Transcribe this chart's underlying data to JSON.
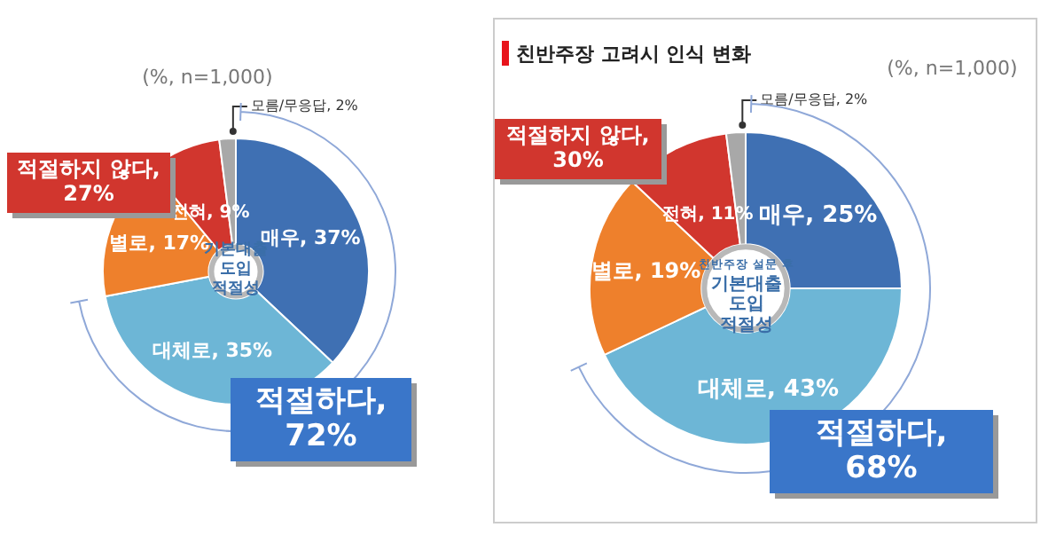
{
  "chart_data": [
    {
      "type": "donut",
      "categories": [
        "매우",
        "대체로",
        "별로",
        "전혀",
        "모름/무응답"
      ],
      "values": [
        37,
        35,
        17,
        9,
        2
      ],
      "colors": [
        "#3f70b3",
        "#6db6d6",
        "#ee802c",
        "#d1362e",
        "#a8a8a8"
      ],
      "value_labels": [
        "37%",
        "35%",
        "17%",
        "9%",
        "2%"
      ],
      "legend": false,
      "annotations": [
        "(%, n=1,000)",
        "기본대출\n도입\n적절성",
        "적절하지 않다, 27%",
        "적절하다, 72%"
      ]
    },
    {
      "type": "donut",
      "title": "친반주장 고려시 인식 변화",
      "categories": [
        "매우",
        "대체로",
        "별로",
        "전혀",
        "모름/무응답"
      ],
      "values": [
        25,
        43,
        19,
        11,
        2
      ],
      "colors": [
        "#3f70b3",
        "#6db6d6",
        "#ee802c",
        "#d1362e",
        "#a8a8a8"
      ],
      "value_labels": [
        "25%",
        "43%",
        "19%",
        "11%",
        "2%"
      ],
      "legend": false,
      "annotations": [
        "(%, n=1,000)",
        "친반주장 설문 후\n기본대출\n도입\n적절성",
        "적절하지 않다, 30%",
        "적절하다, 68%"
      ]
    }
  ]
}
